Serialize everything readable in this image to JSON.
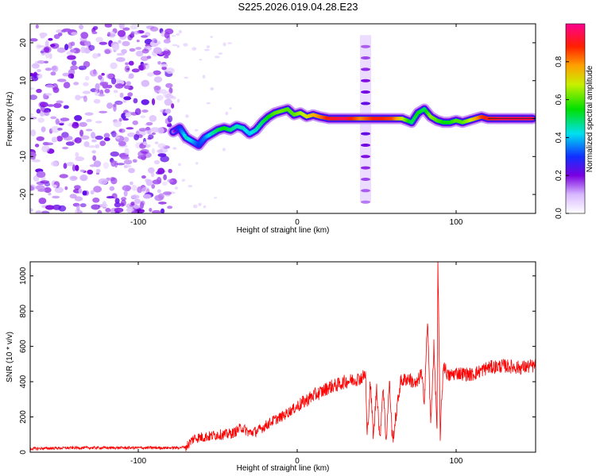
{
  "title": "S225.2026.019.04.28.E23",
  "colors": {
    "line": "#ff0000",
    "background": "#ffffff",
    "axis": "#000000"
  },
  "chart_data": [
    {
      "type": "heatmap",
      "name": "spectrogram",
      "xlabel": "Height of straight line (km)",
      "ylabel": "Frequency (Hz)",
      "xlim": [
        -168,
        150
      ],
      "ylim": [
        -25,
        25
      ],
      "xticks": [
        -100,
        0,
        100
      ],
      "yticks": [
        -20,
        -10,
        0,
        10,
        20
      ],
      "colorbar": {
        "label": "Normalized spectral amplitude",
        "range": [
          0,
          1
        ],
        "ticks": [
          "0.0",
          "0.2",
          "0.4",
          "0.6",
          "0.8"
        ],
        "tick_values": [
          0.0,
          0.2,
          0.4,
          0.6,
          0.8
        ]
      },
      "ridge": {
        "x": [
          -78,
          -74,
          -70,
          -66,
          -62,
          -58,
          -54,
          -50,
          -46,
          -42,
          -38,
          -34,
          -30,
          -26,
          -22,
          -18,
          -14,
          -10,
          -6,
          -2,
          2,
          6,
          10,
          14,
          20,
          30,
          40,
          50,
          60,
          66,
          72,
          76,
          80,
          84,
          88,
          92,
          96,
          100,
          104,
          108,
          112,
          116,
          120,
          130,
          140,
          148
        ],
        "y": [
          -3.5,
          -2.5,
          -5,
          -6,
          -7,
          -5,
          -4,
          -3,
          -2.5,
          -3,
          -2,
          -2.5,
          -4,
          -3,
          -1,
          0.5,
          1.5,
          2,
          2.5,
          1,
          1.5,
          0.5,
          1,
          0.5,
          0,
          0,
          0,
          0,
          0,
          0,
          -1,
          1.5,
          2.5,
          0.5,
          -0.5,
          -1,
          -1,
          -0.5,
          -1,
          -0.5,
          0,
          0.5,
          0,
          0,
          0,
          0
        ],
        "amplitude": [
          0.15,
          0.3,
          0.45,
          0.4,
          0.3,
          0.35,
          0.45,
          0.5,
          0.55,
          0.5,
          0.45,
          0.45,
          0.4,
          0.45,
          0.5,
          0.55,
          0.6,
          0.62,
          0.6,
          0.6,
          0.65,
          0.7,
          0.75,
          0.8,
          0.9,
          0.95,
          0.8,
          0.9,
          0.85,
          0.7,
          0.5,
          0.55,
          0.5,
          0.65,
          0.6,
          0.55,
          0.55,
          0.6,
          0.6,
          0.65,
          0.75,
          0.85,
          0.9,
          0.95,
          0.95,
          0.95
        ]
      },
      "harmonic_column": {
        "x": 43,
        "y": [
          -22,
          -19,
          -16,
          -13,
          -10,
          -7,
          -4,
          4,
          7,
          10,
          13,
          16,
          19
        ]
      }
    },
    {
      "type": "line",
      "name": "snr",
      "xlabel": "Height of straight line (km)",
      "ylabel": "SNR (10 * v/v)",
      "xlim": [
        -168,
        150
      ],
      "ylim": [
        0,
        1080
      ],
      "xticks": [
        -100,
        0,
        100
      ],
      "yticks": [
        0,
        200,
        400,
        600,
        800,
        1000
      ],
      "series": [
        {
          "name": "SNR",
          "x": [
            -168,
            -140,
            -110,
            -90,
            -75,
            -70,
            -65,
            -60,
            -55,
            -50,
            -45,
            -40,
            -35,
            -30,
            -25,
            -20,
            -15,
            -10,
            -5,
            0,
            5,
            10,
            15,
            20,
            25,
            30,
            35,
            40,
            43,
            44,
            46,
            48,
            50,
            52,
            54,
            56,
            58,
            60,
            65,
            70,
            75,
            78,
            80,
            82,
            84,
            86,
            88,
            88.5,
            90,
            92,
            95,
            100,
            110,
            120,
            130,
            140,
            150
          ],
          "y": [
            20,
            25,
            25,
            25,
            25,
            30,
            80,
            85,
            90,
            100,
            100,
            110,
            140,
            110,
            120,
            150,
            180,
            200,
            230,
            260,
            290,
            320,
            340,
            370,
            380,
            400,
            410,
            420,
            440,
            80,
            400,
            80,
            380,
            60,
            380,
            60,
            400,
            60,
            400,
            420,
            380,
            450,
            300,
            750,
            150,
            600,
            130,
            1080,
            100,
            500,
            430,
            450,
            440,
            480,
            490,
            480,
            490
          ]
        }
      ]
    }
  ]
}
